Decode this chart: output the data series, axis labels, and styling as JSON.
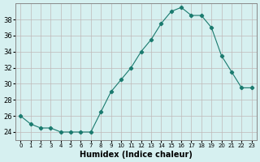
{
  "x": [
    0,
    1,
    2,
    3,
    4,
    5,
    6,
    7,
    8,
    9,
    10,
    11,
    12,
    13,
    14,
    15,
    16,
    17,
    18,
    19,
    20,
    21,
    22,
    23
  ],
  "y": [
    26,
    25,
    24.5,
    24.5,
    24,
    24,
    24,
    24,
    26.5,
    29,
    30.5,
    32,
    34,
    35.5,
    37.5,
    39,
    39.5,
    38.5,
    38.5,
    37,
    33.5,
    31.5,
    29.5,
    29.5
  ],
  "xlabel": "Humidex (Indice chaleur)",
  "ylabel": "",
  "line_color": "#1a7a6e",
  "marker_color": "#1a7a6e",
  "bg_color": "#d6f0f0",
  "grid_color": "#c0b8b8",
  "ylim": [
    23,
    40
  ],
  "xlim": [
    -0.5,
    23.5
  ],
  "yticks": [
    24,
    26,
    28,
    30,
    32,
    34,
    36,
    38
  ],
  "xtick_labels": [
    "0",
    "1",
    "2",
    "3",
    "4",
    "5",
    "6",
    "7",
    "8",
    "9",
    "10",
    "11",
    "12",
    "13",
    "14",
    "15",
    "16",
    "17",
    "18",
    "19",
    "20",
    "21",
    "22",
    "23"
  ]
}
